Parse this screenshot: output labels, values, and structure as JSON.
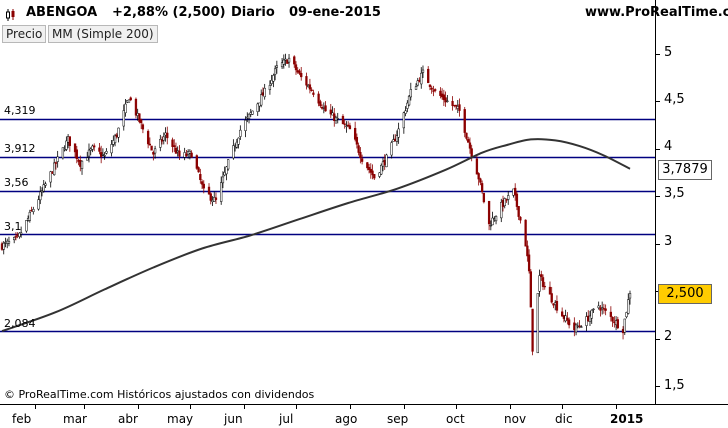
{
  "header": {
    "ticker": "ABENGOA",
    "change": "+2,88% (2,500)",
    "period": "Diario",
    "date": "09-ene-2015",
    "site": "www.ProRealTime.com"
  },
  "legend": {
    "price_label": "Precio",
    "ma_label": "MM (Simple 200)"
  },
  "footnote": "© ProRealTime.com  Históricos ajustados con dividendos",
  "colors": {
    "levels": "#000080",
    "bull": "#000000",
    "bear": "#8b0000",
    "ma": "#333333",
    "last_tag": "#ffcc00"
  },
  "chart_data": {
    "type": "candlestick",
    "y_ticks": [
      "5",
      "4,5",
      "4",
      "3,5",
      "3",
      "2,5",
      "2",
      "1,5"
    ],
    "x_ticks": [
      "feb",
      "mar",
      "abr",
      "may",
      "jun",
      "jul",
      "ago",
      "sep",
      "oct",
      "nov",
      "dic",
      "2015"
    ],
    "ylim": [
      1.35,
      5.25
    ],
    "levels": [
      {
        "label": "4,319",
        "value": 4.319
      },
      {
        "label": "3,912",
        "value": 3.912
      },
      {
        "label": "3,56",
        "value": 3.56
      },
      {
        "label": "3,1",
        "value": 3.1
      },
      {
        "label": "2,084",
        "value": 2.084
      }
    ],
    "last_price": {
      "label": "2,500",
      "value": 2.5
    },
    "ma_last": {
      "label": "3,7879",
      "value": 3.788
    },
    "close_anchors": [
      [
        "2014-01-13",
        2.98
      ],
      [
        "2014-01-22",
        3.05
      ],
      [
        "2014-02-05",
        3.55
      ],
      [
        "2014-02-13",
        3.85
      ],
      [
        "2014-02-20",
        4.1
      ],
      [
        "2014-02-27",
        3.85
      ],
      [
        "2014-03-06",
        4.0
      ],
      [
        "2014-03-13",
        3.92
      ],
      [
        "2014-03-20",
        4.15
      ],
      [
        "2014-03-27",
        4.55
      ],
      [
        "2014-04-03",
        4.25
      ],
      [
        "2014-04-10",
        3.95
      ],
      [
        "2014-04-17",
        4.15
      ],
      [
        "2014-04-25",
        3.92
      ],
      [
        "2014-05-02",
        3.95
      ],
      [
        "2014-05-09",
        3.55
      ],
      [
        "2014-05-16",
        3.45
      ],
      [
        "2014-05-23",
        3.85
      ],
      [
        "2014-05-30",
        4.2
      ],
      [
        "2014-06-06",
        4.4
      ],
      [
        "2014-06-13",
        4.6
      ],
      [
        "2014-06-20",
        4.85
      ],
      [
        "2014-06-27",
        4.95
      ],
      [
        "2014-07-04",
        4.75
      ],
      [
        "2014-07-11",
        4.6
      ],
      [
        "2014-07-18",
        4.4
      ],
      [
        "2014-07-25",
        4.3
      ],
      [
        "2014-08-01",
        4.2
      ],
      [
        "2014-08-08",
        3.9
      ],
      [
        "2014-08-15",
        3.7
      ],
      [
        "2014-08-22",
        3.9
      ],
      [
        "2014-08-29",
        4.2
      ],
      [
        "2014-09-05",
        4.6
      ],
      [
        "2014-09-12",
        4.8
      ],
      [
        "2014-09-19",
        4.6
      ],
      [
        "2014-09-26",
        4.5
      ],
      [
        "2014-10-03",
        4.4
      ],
      [
        "2014-10-10",
        3.95
      ],
      [
        "2014-10-14",
        3.7
      ],
      [
        "2014-10-20",
        3.2
      ],
      [
        "2014-10-27",
        3.4
      ],
      [
        "2014-11-03",
        3.55
      ],
      [
        "2014-11-07",
        3.25
      ],
      [
        "2014-11-10",
        3.0
      ],
      [
        "2014-11-12",
        2.7
      ],
      [
        "2014-11-14",
        1.9
      ],
      [
        "2014-11-18",
        2.65
      ],
      [
        "2014-11-24",
        2.45
      ],
      [
        "2014-12-01",
        2.25
      ],
      [
        "2014-12-08",
        2.1
      ],
      [
        "2014-12-15",
        2.2
      ],
      [
        "2014-12-22",
        2.35
      ],
      [
        "2015-01-05",
        2.1
      ],
      [
        "2015-01-09",
        2.5
      ]
    ],
    "ma_anchors": [
      [
        "2014-01-13",
        2.08
      ],
      [
        "2014-02-13",
        2.28
      ],
      [
        "2014-03-13",
        2.52
      ],
      [
        "2014-04-10",
        2.75
      ],
      [
        "2014-05-08",
        2.95
      ],
      [
        "2014-06-05",
        3.09
      ],
      [
        "2014-07-03",
        3.26
      ],
      [
        "2014-07-31",
        3.43
      ],
      [
        "2014-08-28",
        3.58
      ],
      [
        "2014-09-25",
        3.78
      ],
      [
        "2014-10-16",
        3.96
      ],
      [
        "2014-10-30",
        4.04
      ],
      [
        "2014-11-13",
        4.1
      ],
      [
        "2014-11-27",
        4.09
      ],
      [
        "2014-12-11",
        4.03
      ],
      [
        "2014-12-25",
        3.93
      ],
      [
        "2015-01-09",
        3.79
      ]
    ]
  }
}
